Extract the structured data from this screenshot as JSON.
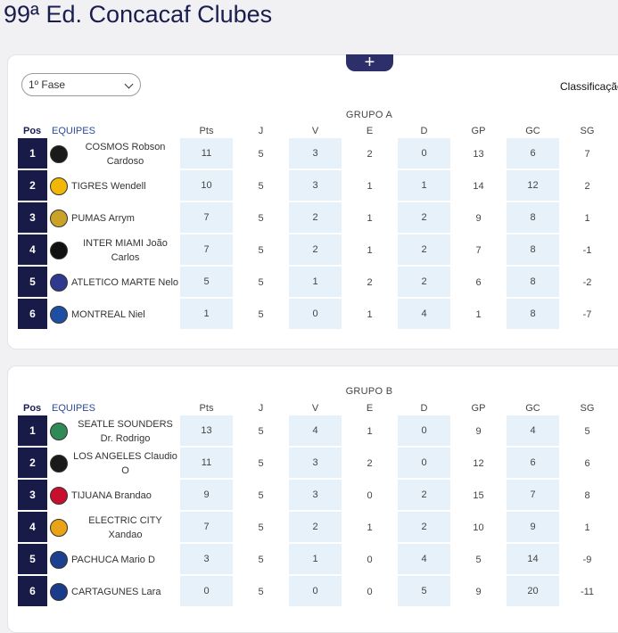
{
  "page": {
    "title": "99ª Ed. Concacaf Clubes"
  },
  "controls": {
    "expand_label": "+",
    "phase_value": "1º Fase",
    "classification_label": "Classificação"
  },
  "headers": {
    "pos": "Pos",
    "team": "EQUIPES",
    "pts": "Pts",
    "j": "J",
    "v": "V",
    "e": "E",
    "d": "D",
    "gp": "GP",
    "gc": "GC",
    "sg": "SG"
  },
  "groups": [
    {
      "title": "GRUPO A",
      "rows": [
        {
          "pos": "1",
          "team": "COSMOS Robson Cardoso",
          "crest_color": "#1a1a1a",
          "crest_icon": "cosmos-crest-icon",
          "pts": "11",
          "j": "5",
          "v": "3",
          "e": "2",
          "d": "0",
          "gp": "13",
          "gc": "6",
          "sg": "7"
        },
        {
          "pos": "2",
          "team": "TIGRES Wendell",
          "crest_color": "#f2b705",
          "crest_icon": "tigres-crest-icon",
          "pts": "10",
          "j": "5",
          "v": "3",
          "e": "1",
          "d": "1",
          "gp": "14",
          "gc": "12",
          "sg": "2"
        },
        {
          "pos": "3",
          "team": "PUMAS Arrym",
          "crest_color": "#c9a227",
          "crest_icon": "pumas-crest-icon",
          "pts": "7",
          "j": "5",
          "v": "2",
          "e": "1",
          "d": "2",
          "gp": "9",
          "gc": "8",
          "sg": "1"
        },
        {
          "pos": "4",
          "team": "INTER MIAMI João Carlos",
          "crest_color": "#111111",
          "crest_icon": "inter-miami-crest-icon",
          "pts": "7",
          "j": "5",
          "v": "2",
          "e": "1",
          "d": "2",
          "gp": "7",
          "gc": "8",
          "sg": "-1"
        },
        {
          "pos": "5",
          "team": "ATLETICO MARTE Nelo",
          "crest_color": "#2f3a8f",
          "crest_icon": "atletico-marte-crest-icon",
          "pts": "5",
          "j": "5",
          "v": "1",
          "e": "2",
          "d": "2",
          "gp": "6",
          "gc": "8",
          "sg": "-2"
        },
        {
          "pos": "6",
          "team": "MONTREAL Niel",
          "crest_color": "#1f4fa3",
          "crest_icon": "montreal-crest-icon",
          "pts": "1",
          "j": "5",
          "v": "0",
          "e": "1",
          "d": "4",
          "gp": "1",
          "gc": "8",
          "sg": "-7"
        }
      ]
    },
    {
      "title": "GRUPO B",
      "rows": [
        {
          "pos": "1",
          "team": "SEATLE SOUNDERS Dr. Rodrigo",
          "crest_color": "#2e8b57",
          "crest_icon": "seattle-sounders-crest-icon",
          "pts": "13",
          "j": "5",
          "v": "4",
          "e": "1",
          "d": "0",
          "gp": "9",
          "gc": "4",
          "sg": "5"
        },
        {
          "pos": "2",
          "team": "LOS ANGELES Claudio O",
          "crest_color": "#1a1a1a",
          "crest_icon": "los-angeles-crest-icon",
          "pts": "11",
          "j": "5",
          "v": "3",
          "e": "2",
          "d": "0",
          "gp": "12",
          "gc": "6",
          "sg": "6"
        },
        {
          "pos": "3",
          "team": "TIJUANA Brandao",
          "crest_color": "#c8102e",
          "crest_icon": "tijuana-crest-icon",
          "pts": "9",
          "j": "5",
          "v": "3",
          "e": "0",
          "d": "2",
          "gp": "15",
          "gc": "7",
          "sg": "8"
        },
        {
          "pos": "4",
          "team": "ELECTRIC CITY Xandao",
          "crest_color": "#e8a317",
          "crest_icon": "electric-city-crest-icon",
          "pts": "7",
          "j": "5",
          "v": "2",
          "e": "1",
          "d": "2",
          "gp": "10",
          "gc": "9",
          "sg": "1"
        },
        {
          "pos": "5",
          "team": "PACHUCA Mario D",
          "crest_color": "#1d3f8f",
          "crest_icon": "pachuca-crest-icon",
          "pts": "3",
          "j": "5",
          "v": "1",
          "e": "0",
          "d": "4",
          "gp": "5",
          "gc": "14",
          "sg": "-9"
        },
        {
          "pos": "6",
          "team": "CARTAGUNES Lara",
          "crest_color": "#1a3c8a",
          "crest_icon": "cartagunes-crest-icon",
          "pts": "0",
          "j": "5",
          "v": "0",
          "e": "0",
          "d": "5",
          "gp": "9",
          "gc": "20",
          "sg": "-11"
        }
      ]
    }
  ]
}
